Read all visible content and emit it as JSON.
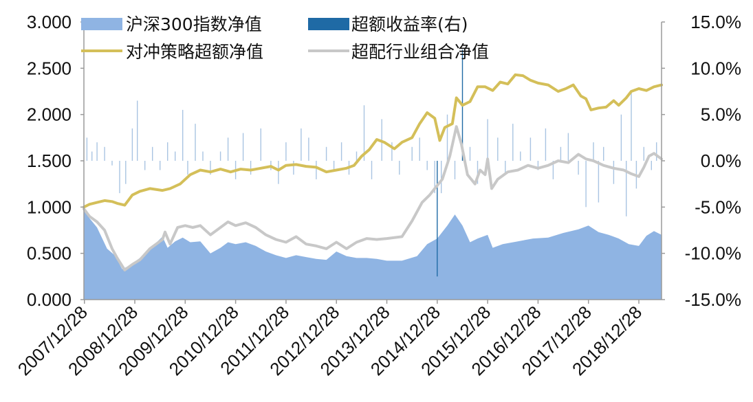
{
  "chart_data": {
    "type": "area",
    "title": "",
    "xlabel": "",
    "ylabel": "",
    "y2label": "",
    "ylim": [
      0,
      3.0
    ],
    "y2lim": [
      -15.0,
      15.0
    ],
    "grid": false,
    "legend_position": "top",
    "left_ticks": [
      "3.000",
      "2.500",
      "2.000",
      "1.500",
      "1.000",
      "0.500",
      "0.000"
    ],
    "right_ticks": [
      "15.0%",
      "10.0%",
      "5.0%",
      "0.0%",
      "-5.0%",
      "-10.0%",
      "-15.0%"
    ],
    "x_tick_labels": [
      "2007/12/28",
      "2008/12/28",
      "2009/12/28",
      "2010/12/28",
      "2011/12/28",
      "2012/12/28",
      "2013/12/28",
      "2014/12/28",
      "2015/12/28",
      "2016/12/28",
      "2017/12/28",
      "2018/12/28"
    ],
    "x_tick_years": [
      2008,
      2009,
      2010,
      2011,
      2012,
      2013,
      2014,
      2015,
      2016,
      2017,
      2018,
      2019
    ],
    "x_range": [
      2007.99,
      2019.45
    ],
    "series": [
      {
        "name": "沪深300指数净值",
        "kind": "area",
        "axis": "left",
        "color": "#8fb4e3",
        "points": [
          [
            2007.99,
            1.0
          ],
          [
            2008.1,
            0.88
          ],
          [
            2008.25,
            0.78
          ],
          [
            2008.45,
            0.55
          ],
          [
            2008.6,
            0.48
          ],
          [
            2008.75,
            0.33
          ],
          [
            2008.9,
            0.37
          ],
          [
            2009.1,
            0.45
          ],
          [
            2009.3,
            0.55
          ],
          [
            2009.55,
            0.68
          ],
          [
            2009.65,
            0.56
          ],
          [
            2009.8,
            0.63
          ],
          [
            2009.95,
            0.67
          ],
          [
            2010.1,
            0.62
          ],
          [
            2010.3,
            0.63
          ],
          [
            2010.5,
            0.5
          ],
          [
            2010.7,
            0.56
          ],
          [
            2010.85,
            0.62
          ],
          [
            2011.0,
            0.6
          ],
          [
            2011.2,
            0.62
          ],
          [
            2011.4,
            0.58
          ],
          [
            2011.6,
            0.52
          ],
          [
            2011.8,
            0.48
          ],
          [
            2012.0,
            0.45
          ],
          [
            2012.2,
            0.48
          ],
          [
            2012.4,
            0.46
          ],
          [
            2012.6,
            0.44
          ],
          [
            2012.8,
            0.43
          ],
          [
            2013.0,
            0.52
          ],
          [
            2013.2,
            0.47
          ],
          [
            2013.4,
            0.45
          ],
          [
            2013.6,
            0.45
          ],
          [
            2013.8,
            0.44
          ],
          [
            2014.0,
            0.42
          ],
          [
            2014.3,
            0.42
          ],
          [
            2014.6,
            0.47
          ],
          [
            2014.8,
            0.6
          ],
          [
            2015.0,
            0.66
          ],
          [
            2015.2,
            0.8
          ],
          [
            2015.35,
            0.92
          ],
          [
            2015.5,
            0.8
          ],
          [
            2015.65,
            0.62
          ],
          [
            2015.8,
            0.66
          ],
          [
            2016.0,
            0.7
          ],
          [
            2016.1,
            0.56
          ],
          [
            2016.3,
            0.6
          ],
          [
            2016.6,
            0.63
          ],
          [
            2016.9,
            0.66
          ],
          [
            2017.2,
            0.67
          ],
          [
            2017.5,
            0.72
          ],
          [
            2017.8,
            0.76
          ],
          [
            2018.0,
            0.8
          ],
          [
            2018.2,
            0.73
          ],
          [
            2018.4,
            0.7
          ],
          [
            2018.6,
            0.66
          ],
          [
            2018.8,
            0.6
          ],
          [
            2019.0,
            0.58
          ],
          [
            2019.15,
            0.69
          ],
          [
            2019.3,
            0.74
          ],
          [
            2019.45,
            0.7
          ]
        ]
      },
      {
        "name": "超额收益率(右)",
        "kind": "bar",
        "axis": "right",
        "color": "#1f6aa5",
        "light_color": "#a9c4e2",
        "points": [
          [
            2008.05,
            2.5
          ],
          [
            2008.15,
            1.0
          ],
          [
            2008.25,
            2.0
          ],
          [
            2008.4,
            1.5
          ],
          [
            2008.55,
            -0.5
          ],
          [
            2008.7,
            -3.5
          ],
          [
            2008.82,
            -2.5
          ],
          [
            2008.95,
            3.5
          ],
          [
            2009.05,
            6.5
          ],
          [
            2009.2,
            -1.0
          ],
          [
            2009.35,
            1.5
          ],
          [
            2009.5,
            -1.0
          ],
          [
            2009.65,
            2.0
          ],
          [
            2009.8,
            1.0
          ],
          [
            2009.95,
            5.5
          ],
          [
            2010.05,
            -1.5
          ],
          [
            2010.2,
            4.0
          ],
          [
            2010.35,
            1.0
          ],
          [
            2010.5,
            -1.5
          ],
          [
            2010.7,
            1.0
          ],
          [
            2010.85,
            2.5
          ],
          [
            2011.0,
            -2.0
          ],
          [
            2011.15,
            3.0
          ],
          [
            2011.3,
            -1.5
          ],
          [
            2011.5,
            3.5
          ],
          [
            2011.7,
            -1.0
          ],
          [
            2011.85,
            -2.5
          ],
          [
            2012.0,
            2.0
          ],
          [
            2012.15,
            -1.5
          ],
          [
            2012.3,
            3.5
          ],
          [
            2012.45,
            2.5
          ],
          [
            2012.6,
            -2.0
          ],
          [
            2012.8,
            1.5
          ],
          [
            2012.95,
            -1.0
          ],
          [
            2013.1,
            2.0
          ],
          [
            2013.25,
            -1.5
          ],
          [
            2013.4,
            1.0
          ],
          [
            2013.55,
            6.0
          ],
          [
            2013.7,
            -2.0
          ],
          [
            2013.9,
            4.5
          ],
          [
            2014.1,
            2.0
          ],
          [
            2014.25,
            -1.5
          ],
          [
            2014.5,
            1.5
          ],
          [
            2014.65,
            2.5
          ],
          [
            2014.8,
            -1.0
          ],
          [
            2014.95,
            -3.5
          ],
          [
            2015.0,
            -12.5
          ],
          [
            2015.08,
            -3.5
          ],
          [
            2015.2,
            5.0
          ],
          [
            2015.35,
            -2.0
          ],
          [
            2015.5,
            12.0
          ],
          [
            2015.65,
            1.5
          ],
          [
            2015.8,
            -2.5
          ],
          [
            2016.0,
            4.5
          ],
          [
            2016.2,
            2.5
          ],
          [
            2016.35,
            -1.5
          ],
          [
            2016.5,
            4.0
          ],
          [
            2016.65,
            1.0
          ],
          [
            2016.85,
            2.5
          ],
          [
            2017.0,
            -1.0
          ],
          [
            2017.15,
            3.5
          ],
          [
            2017.3,
            -2.0
          ],
          [
            2017.45,
            1.5
          ],
          [
            2017.6,
            3.0
          ],
          [
            2017.8,
            -1.5
          ],
          [
            2017.95,
            -5.0
          ],
          [
            2018.1,
            2.0
          ],
          [
            2018.2,
            -4.5
          ],
          [
            2018.3,
            1.5
          ],
          [
            2018.5,
            -2.5
          ],
          [
            2018.65,
            5.0
          ],
          [
            2018.75,
            -6.0
          ],
          [
            2018.85,
            7.5
          ],
          [
            2018.95,
            -3.0
          ],
          [
            2019.1,
            1.5
          ],
          [
            2019.25,
            -1.0
          ],
          [
            2019.35,
            2.0
          ]
        ]
      },
      {
        "name": "对冲策略超额净值",
        "kind": "line",
        "axis": "left",
        "color": "#d4bf59",
        "points": [
          [
            2007.99,
            1.0
          ],
          [
            2008.1,
            1.03
          ],
          [
            2008.25,
            1.05
          ],
          [
            2008.4,
            1.07
          ],
          [
            2008.55,
            1.06
          ],
          [
            2008.65,
            1.04
          ],
          [
            2008.8,
            1.02
          ],
          [
            2008.95,
            1.13
          ],
          [
            2009.1,
            1.17
          ],
          [
            2009.3,
            1.2
          ],
          [
            2009.55,
            1.18
          ],
          [
            2009.7,
            1.2
          ],
          [
            2009.9,
            1.25
          ],
          [
            2010.1,
            1.35
          ],
          [
            2010.3,
            1.4
          ],
          [
            2010.5,
            1.38
          ],
          [
            2010.7,
            1.41
          ],
          [
            2010.9,
            1.38
          ],
          [
            2011.1,
            1.41
          ],
          [
            2011.3,
            1.4
          ],
          [
            2011.5,
            1.42
          ],
          [
            2011.7,
            1.44
          ],
          [
            2011.85,
            1.4
          ],
          [
            2012.0,
            1.45
          ],
          [
            2012.2,
            1.46
          ],
          [
            2012.4,
            1.44
          ],
          [
            2012.6,
            1.43
          ],
          [
            2012.8,
            1.38
          ],
          [
            2013.0,
            1.4
          ],
          [
            2013.2,
            1.42
          ],
          [
            2013.35,
            1.45
          ],
          [
            2013.5,
            1.55
          ],
          [
            2013.65,
            1.62
          ],
          [
            2013.8,
            1.73
          ],
          [
            2013.95,
            1.7
          ],
          [
            2014.15,
            1.63
          ],
          [
            2014.3,
            1.7
          ],
          [
            2014.5,
            1.75
          ],
          [
            2014.65,
            1.9
          ],
          [
            2014.8,
            2.02
          ],
          [
            2014.95,
            1.96
          ],
          [
            2015.05,
            1.72
          ],
          [
            2015.15,
            1.86
          ],
          [
            2015.3,
            1.9
          ],
          [
            2015.38,
            2.18
          ],
          [
            2015.5,
            2.1
          ],
          [
            2015.65,
            2.14
          ],
          [
            2015.8,
            2.3
          ],
          [
            2015.95,
            2.3
          ],
          [
            2016.1,
            2.26
          ],
          [
            2016.25,
            2.35
          ],
          [
            2016.4,
            2.33
          ],
          [
            2016.55,
            2.43
          ],
          [
            2016.7,
            2.42
          ],
          [
            2016.85,
            2.37
          ],
          [
            2017.0,
            2.34
          ],
          [
            2017.2,
            2.32
          ],
          [
            2017.4,
            2.25
          ],
          [
            2017.55,
            2.28
          ],
          [
            2017.7,
            2.32
          ],
          [
            2017.85,
            2.2
          ],
          [
            2017.95,
            2.17
          ],
          [
            2018.05,
            2.05
          ],
          [
            2018.2,
            2.07
          ],
          [
            2018.35,
            2.08
          ],
          [
            2018.5,
            2.15
          ],
          [
            2018.6,
            2.1
          ],
          [
            2018.75,
            2.18
          ],
          [
            2018.85,
            2.25
          ],
          [
            2019.0,
            2.28
          ],
          [
            2019.15,
            2.26
          ],
          [
            2019.3,
            2.3
          ],
          [
            2019.45,
            2.32
          ]
        ]
      },
      {
        "name": "超配行业组合净值",
        "kind": "line",
        "axis": "left",
        "color": "#c8c8c8",
        "points": [
          [
            2007.99,
            0.98
          ],
          [
            2008.1,
            0.9
          ],
          [
            2008.25,
            0.84
          ],
          [
            2008.4,
            0.75
          ],
          [
            2008.55,
            0.55
          ],
          [
            2008.65,
            0.45
          ],
          [
            2008.8,
            0.32
          ],
          [
            2008.95,
            0.38
          ],
          [
            2009.1,
            0.43
          ],
          [
            2009.3,
            0.55
          ],
          [
            2009.55,
            0.65
          ],
          [
            2009.6,
            0.73
          ],
          [
            2009.7,
            0.6
          ],
          [
            2009.85,
            0.78
          ],
          [
            2010.0,
            0.8
          ],
          [
            2010.15,
            0.78
          ],
          [
            2010.3,
            0.8
          ],
          [
            2010.5,
            0.7
          ],
          [
            2010.7,
            0.78
          ],
          [
            2010.85,
            0.84
          ],
          [
            2011.0,
            0.8
          ],
          [
            2011.2,
            0.83
          ],
          [
            2011.4,
            0.78
          ],
          [
            2011.6,
            0.7
          ],
          [
            2011.8,
            0.65
          ],
          [
            2012.0,
            0.62
          ],
          [
            2012.2,
            0.68
          ],
          [
            2012.4,
            0.6
          ],
          [
            2012.6,
            0.58
          ],
          [
            2012.8,
            0.55
          ],
          [
            2013.0,
            0.62
          ],
          [
            2013.2,
            0.55
          ],
          [
            2013.4,
            0.62
          ],
          [
            2013.6,
            0.66
          ],
          [
            2013.8,
            0.65
          ],
          [
            2014.0,
            0.66
          ],
          [
            2014.3,
            0.68
          ],
          [
            2014.5,
            0.85
          ],
          [
            2014.7,
            1.05
          ],
          [
            2014.85,
            1.13
          ],
          [
            2014.95,
            1.2
          ],
          [
            2015.1,
            1.3
          ],
          [
            2015.25,
            1.55
          ],
          [
            2015.38,
            1.87
          ],
          [
            2015.48,
            1.68
          ],
          [
            2015.6,
            1.35
          ],
          [
            2015.75,
            1.25
          ],
          [
            2015.85,
            1.4
          ],
          [
            2015.95,
            1.35
          ],
          [
            2016.0,
            1.52
          ],
          [
            2016.08,
            1.2
          ],
          [
            2016.2,
            1.3
          ],
          [
            2016.4,
            1.38
          ],
          [
            2016.6,
            1.4
          ],
          [
            2016.8,
            1.45
          ],
          [
            2017.0,
            1.42
          ],
          [
            2017.2,
            1.45
          ],
          [
            2017.4,
            1.5
          ],
          [
            2017.6,
            1.48
          ],
          [
            2017.8,
            1.57
          ],
          [
            2017.95,
            1.52
          ],
          [
            2018.1,
            1.5
          ],
          [
            2018.3,
            1.45
          ],
          [
            2018.5,
            1.42
          ],
          [
            2018.7,
            1.4
          ],
          [
            2018.85,
            1.36
          ],
          [
            2019.0,
            1.33
          ],
          [
            2019.1,
            1.43
          ],
          [
            2019.2,
            1.55
          ],
          [
            2019.3,
            1.58
          ],
          [
            2019.45,
            1.52
          ]
        ]
      }
    ]
  }
}
